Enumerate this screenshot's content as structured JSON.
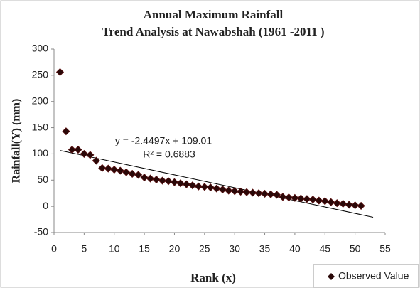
{
  "chart_data": {
    "type": "scatter",
    "title": [
      "Annual Maximum Rainfall",
      "Trend Analysis at Nawabshah (1961 -2011 )"
    ],
    "xlabel": "Rank (x)",
    "ylabel": "Rainfall(Y)  (mm)",
    "series": [
      {
        "name": "Observed Value",
        "color": "#2a0808",
        "x": [
          1,
          2,
          3,
          4,
          5,
          6,
          7,
          8,
          9,
          10,
          11,
          12,
          13,
          14,
          15,
          16,
          17,
          18,
          19,
          20,
          21,
          22,
          23,
          24,
          25,
          26,
          27,
          28,
          29,
          30,
          31,
          32,
          33,
          34,
          35,
          36,
          37,
          38,
          39,
          40,
          41,
          42,
          43,
          44,
          45,
          46,
          47,
          48,
          49,
          50,
          51
        ],
        "values": [
          256,
          143,
          108,
          108,
          100,
          98,
          87,
          73,
          72,
          70,
          68,
          65,
          62,
          60,
          55,
          53,
          51,
          49,
          48,
          46,
          44,
          42,
          40,
          38,
          37,
          36,
          34,
          32,
          30,
          29,
          28,
          27,
          26,
          25,
          24,
          23,
          22,
          18,
          17,
          16,
          15,
          14,
          13,
          11,
          10,
          8,
          6,
          5,
          3,
          2,
          1
        ]
      }
    ],
    "trendline": {
      "slope": -2.4497,
      "intercept": 109.01,
      "x": [
        1,
        53
      ],
      "color": "#000000"
    },
    "annotations": [
      "y = -2.4497x + 109.01",
      "R² = 0.6883"
    ],
    "xlim": [
      0,
      55
    ],
    "xticks": [
      0,
      5,
      10,
      15,
      20,
      25,
      30,
      35,
      40,
      45,
      50,
      55
    ],
    "ylim": [
      -50,
      300
    ],
    "yticks": [
      -50,
      0,
      50,
      100,
      150,
      200,
      250,
      300
    ],
    "grid": false,
    "legend": "bottom-right"
  }
}
